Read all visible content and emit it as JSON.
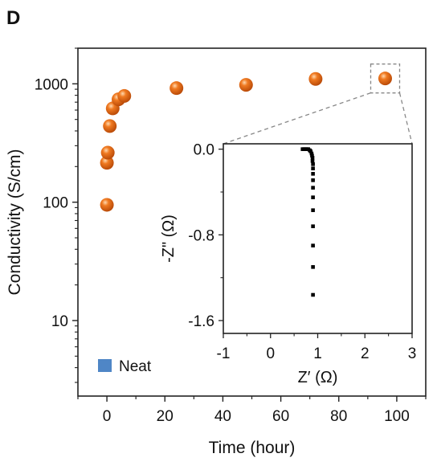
{
  "panel_label": "D",
  "chart_data": [
    {
      "type": "scatter",
      "xlabel": "Time (hour)",
      "ylabel": "Conductivity (S/cm)",
      "xlim": [
        -10,
        110
      ],
      "ylim": [
        2.3,
        2000
      ],
      "yscale": "log",
      "xticks": [
        0,
        20,
        40,
        60,
        80,
        100
      ],
      "yticks": [
        10,
        100,
        1000
      ],
      "legend": {
        "label": "Neat",
        "color": "#4f86c6",
        "placement": "bottom-left"
      },
      "series": [
        {
          "color": "#f07a21",
          "points": [
            {
              "x": 0,
              "y": 95
            },
            {
              "x": 0,
              "y": 215
            },
            {
              "x": 0.3,
              "y": 262
            },
            {
              "x": 1,
              "y": 440
            },
            {
              "x": 2,
              "y": 620
            },
            {
              "x": 4,
              "y": 740
            },
            {
              "x": 6,
              "y": 790
            },
            {
              "x": 24,
              "y": 920
            },
            {
              "x": 48,
              "y": 980
            },
            {
              "x": 72,
              "y": 1100
            },
            {
              "x": 96,
              "y": 1110
            }
          ]
        }
      ],
      "highlight": {
        "x": 96,
        "y": 1110
      }
    },
    {
      "type": "scatter",
      "xlabel": "Z′ (Ω)",
      "ylabel": "-Z\" (Ω)",
      "xlim": [
        -1,
        3
      ],
      "ylim": [
        -1.72,
        0.05
      ],
      "xticks": [
        -1,
        0,
        1,
        2,
        3
      ],
      "yticks": [
        "0.0",
        "-0.8",
        "-1.6"
      ],
      "series": [
        {
          "color": "#000000",
          "points": [
            {
              "x": 0.68,
              "y": 0.0
            },
            {
              "x": 0.71,
              "y": 0.0
            },
            {
              "x": 0.74,
              "y": 0.0
            },
            {
              "x": 0.77,
              "y": 0.0
            },
            {
              "x": 0.8,
              "y": 0.0
            },
            {
              "x": 0.83,
              "y": -0.01
            },
            {
              "x": 0.85,
              "y": -0.02
            },
            {
              "x": 0.87,
              "y": -0.04
            },
            {
              "x": 0.88,
              "y": -0.06
            },
            {
              "x": 0.89,
              "y": -0.08
            },
            {
              "x": 0.89,
              "y": -0.11
            },
            {
              "x": 0.9,
              "y": -0.14
            },
            {
              "x": 0.9,
              "y": -0.18
            },
            {
              "x": 0.9,
              "y": -0.23
            },
            {
              "x": 0.9,
              "y": -0.29
            },
            {
              "x": 0.9,
              "y": -0.36
            },
            {
              "x": 0.9,
              "y": -0.45
            },
            {
              "x": 0.9,
              "y": -0.57
            },
            {
              "x": 0.9,
              "y": -0.72
            },
            {
              "x": 0.9,
              "y": -0.9
            },
            {
              "x": 0.9,
              "y": -1.1
            },
            {
              "x": 0.9,
              "y": -1.36
            }
          ]
        }
      ]
    }
  ]
}
